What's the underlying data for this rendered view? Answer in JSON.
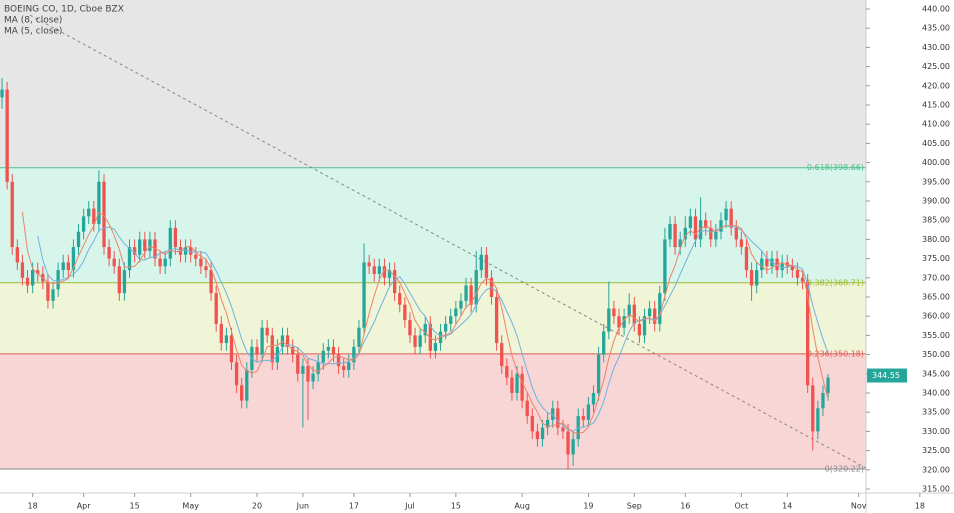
{
  "chart_data": {
    "type": "candlestick",
    "title": "BOEING CO, 1D, Cboe BZX",
    "up_color": "#26a69a",
    "down_color": "#ef5350",
    "open": [
      417,
      419,
      395,
      378,
      374,
      370,
      368,
      372,
      371,
      369,
      364,
      367,
      372,
      374,
      372,
      378,
      382,
      386,
      388,
      384,
      395,
      378,
      375,
      373,
      366,
      372,
      378,
      376,
      380,
      377,
      380,
      375,
      373,
      375,
      383,
      378,
      376,
      378,
      376,
      375,
      373,
      372,
      366,
      358,
      353,
      355,
      348,
      342,
      338,
      346,
      352,
      350,
      357,
      355,
      348,
      352,
      355,
      352,
      350,
      345,
      347,
      343,
      345,
      348,
      351,
      352,
      350,
      347,
      346,
      348,
      352,
      357,
      374,
      373,
      371,
      373,
      370,
      372,
      366,
      363,
      359,
      355,
      352,
      355,
      358,
      351,
      353,
      356,
      358,
      360,
      362,
      364,
      368,
      363,
      372,
      376,
      370,
      365,
      353,
      347,
      344,
      340,
      345,
      338,
      334,
      330,
      328,
      331,
      333,
      336,
      331,
      330,
      324,
      328,
      334,
      333,
      337,
      340,
      350,
      356,
      362,
      360,
      357,
      360,
      363,
      358,
      355,
      360,
      362,
      358,
      366,
      380,
      384,
      378,
      380,
      383,
      386,
      380,
      385,
      383,
      380,
      382,
      385,
      388,
      383,
      380,
      378,
      372,
      368,
      372,
      375,
      373,
      375,
      372,
      374,
      373,
      372,
      370,
      369,
      342,
      330,
      336,
      340
    ],
    "high": [
      422,
      421,
      397,
      380,
      376,
      372,
      374,
      374,
      373,
      371,
      369,
      374,
      376,
      376,
      380,
      384,
      388,
      390,
      390,
      398,
      397,
      380,
      377,
      375,
      374,
      380,
      380,
      382,
      382,
      382,
      382,
      377,
      377,
      385,
      385,
      380,
      380,
      380,
      378,
      377,
      375,
      374,
      368,
      360,
      357,
      357,
      350,
      344,
      348,
      354,
      354,
      359,
      359,
      357,
      354,
      357,
      357,
      354,
      352,
      349,
      349,
      347,
      350,
      353,
      354,
      354,
      352,
      349,
      350,
      354,
      359,
      379,
      376,
      375,
      375,
      375,
      374,
      374,
      368,
      365,
      361,
      357,
      357,
      360,
      360,
      355,
      358,
      360,
      362,
      364,
      366,
      370,
      370,
      377,
      378,
      378,
      372,
      367,
      355,
      349,
      346,
      347,
      347,
      340,
      336,
      332,
      333,
      335,
      338,
      338,
      333,
      332,
      330,
      336,
      336,
      339,
      342,
      352,
      358,
      369,
      364,
      362,
      362,
      366,
      365,
      360,
      362,
      364,
      364,
      368,
      383,
      386,
      386,
      382,
      386,
      388,
      388,
      391,
      387,
      385,
      384,
      387,
      390,
      390,
      385,
      382,
      380,
      374,
      374,
      377,
      377,
      377,
      377,
      376,
      376,
      375,
      374,
      372,
      371,
      344,
      338,
      342,
      345
    ],
    "low": [
      414,
      393,
      376,
      372,
      368,
      366,
      366,
      369,
      367,
      362,
      362,
      365,
      370,
      370,
      370,
      376,
      380,
      384,
      382,
      382,
      376,
      373,
      371,
      364,
      364,
      370,
      374,
      374,
      375,
      375,
      373,
      371,
      371,
      373,
      376,
      374,
      374,
      374,
      373,
      371,
      370,
      364,
      356,
      351,
      351,
      346,
      340,
      336,
      336,
      344,
      348,
      348,
      353,
      346,
      346,
      350,
      350,
      348,
      343,
      331,
      333,
      341,
      343,
      346,
      349,
      348,
      345,
      344,
      344,
      346,
      350,
      355,
      371,
      369,
      369,
      368,
      368,
      364,
      361,
      357,
      353,
      350,
      350,
      353,
      349,
      349,
      351,
      354,
      356,
      358,
      360,
      362,
      361,
      361,
      370,
      368,
      363,
      351,
      345,
      342,
      338,
      338,
      336,
      332,
      328,
      326,
      326,
      329,
      331,
      329,
      328,
      320,
      321,
      326,
      331,
      331,
      335,
      338,
      348,
      354,
      358,
      355,
      355,
      358,
      356,
      353,
      353,
      358,
      356,
      356,
      364,
      378,
      376,
      376,
      378,
      381,
      378,
      378,
      381,
      378,
      378,
      380,
      383,
      381,
      378,
      376,
      370,
      364,
      366,
      370,
      371,
      371,
      370,
      370,
      371,
      370,
      368,
      367,
      340,
      325,
      328,
      334,
      338
    ],
    "close": [
      419,
      395,
      378,
      374,
      370,
      368,
      372,
      371,
      369,
      364,
      367,
      372,
      374,
      372,
      378,
      382,
      386,
      388,
      384,
      395,
      378,
      375,
      373,
      366,
      372,
      378,
      376,
      380,
      377,
      380,
      375,
      373,
      375,
      383,
      378,
      376,
      378,
      376,
      375,
      373,
      372,
      366,
      358,
      353,
      355,
      348,
      342,
      338,
      346,
      352,
      350,
      357,
      355,
      348,
      352,
      355,
      352,
      350,
      345,
      347,
      343,
      345,
      348,
      351,
      352,
      350,
      347,
      346,
      348,
      352,
      357,
      374,
      373,
      371,
      373,
      370,
      372,
      366,
      363,
      359,
      355,
      352,
      355,
      358,
      351,
      353,
      356,
      358,
      360,
      362,
      364,
      368,
      363,
      372,
      376,
      370,
      365,
      353,
      347,
      344,
      340,
      345,
      338,
      334,
      330,
      328,
      331,
      333,
      336,
      331,
      330,
      324,
      328,
      334,
      333,
      337,
      340,
      350,
      356,
      362,
      360,
      357,
      360,
      363,
      358,
      355,
      360,
      362,
      358,
      366,
      380,
      384,
      378,
      380,
      383,
      386,
      380,
      385,
      383,
      380,
      382,
      385,
      388,
      383,
      380,
      378,
      372,
      368,
      372,
      375,
      373,
      375,
      372,
      374,
      373,
      372,
      370,
      369,
      342,
      330,
      336,
      340,
      344
    ],
    "indicators": [
      {
        "name": "MA (8, close)",
        "period": 8,
        "color": "#6fb3e0"
      },
      {
        "name": "MA (5, close)",
        "period": 5,
        "color": "#f0826a"
      }
    ],
    "fib_levels": [
      {
        "value": 398.66,
        "label": "0.618(398.66)",
        "color": "#4cbf8c"
      },
      {
        "value": 368.71,
        "label": "0.382(368.71)",
        "color": "#9cb92e"
      },
      {
        "value": 350.18,
        "label": "0.236(350.18)",
        "color": "#e05a5a"
      },
      {
        "value": 320.22,
        "label": "0(320.22)",
        "color": "#888888"
      }
    ],
    "fib_fills": [
      "#e6e6e6",
      "#d7f5ea",
      "#f1f5d8",
      "#f8d6d6"
    ],
    "trendline": {
      "x": [
        5.5,
        169.4
      ],
      "y": [
        438.4,
        320.5
      ]
    },
    "last_price": 344.55,
    "xlim": [
      -0.4,
      186.7
    ],
    "ylim": [
      313.96,
      442.34
    ],
    "xticks": [
      {
        "value": 6,
        "label": "18"
      },
      {
        "value": 16,
        "label": "Apr"
      },
      {
        "value": 26,
        "label": "15"
      },
      {
        "value": 37,
        "label": "May"
      },
      {
        "value": 50,
        "label": "20"
      },
      {
        "value": 59,
        "label": "Jun"
      },
      {
        "value": 69,
        "label": "17"
      },
      {
        "value": 80,
        "label": "Jul"
      },
      {
        "value": 89,
        "label": "15"
      },
      {
        "value": 102,
        "label": "Aug"
      },
      {
        "value": 115,
        "label": "19"
      },
      {
        "value": 124,
        "label": "Sep"
      },
      {
        "value": 134,
        "label": "16"
      },
      {
        "value": 145,
        "label": "Oct"
      },
      {
        "value": 154,
        "label": "14"
      },
      {
        "value": 168,
        "label": "Nov"
      },
      {
        "value": 180,
        "label": "18"
      }
    ],
    "yticks": [
      {
        "value": 315,
        "label": "315.00"
      },
      {
        "value": 320,
        "label": "320.00"
      },
      {
        "value": 325,
        "label": "325.00"
      },
      {
        "value": 330,
        "label": "330.00"
      },
      {
        "value": 335,
        "label": "335.00"
      },
      {
        "value": 340,
        "label": "340.00"
      },
      {
        "value": 345,
        "label": "345.00"
      },
      {
        "value": 350,
        "label": "350.00"
      },
      {
        "value": 355,
        "label": "355.00"
      },
      {
        "value": 360,
        "label": "360.00"
      },
      {
        "value": 365,
        "label": "365.00"
      },
      {
        "value": 370,
        "label": "370.00"
      },
      {
        "value": 375,
        "label": "375.00"
      },
      {
        "value": 380,
        "label": "380.00"
      },
      {
        "value": 385,
        "label": "385.00"
      },
      {
        "value": 390,
        "label": "390.00"
      },
      {
        "value": 395,
        "label": "395.00"
      },
      {
        "value": 400,
        "label": "400.00"
      },
      {
        "value": 405,
        "label": "405.00"
      },
      {
        "value": 410,
        "label": "410.00"
      },
      {
        "value": 415,
        "label": "415.00"
      },
      {
        "value": 420,
        "label": "420.00"
      },
      {
        "value": 425,
        "label": "425.00"
      },
      {
        "value": 430,
        "label": "430.00"
      },
      {
        "value": 435,
        "label": "435.00"
      },
      {
        "value": 440,
        "label": "440.00"
      }
    ]
  }
}
